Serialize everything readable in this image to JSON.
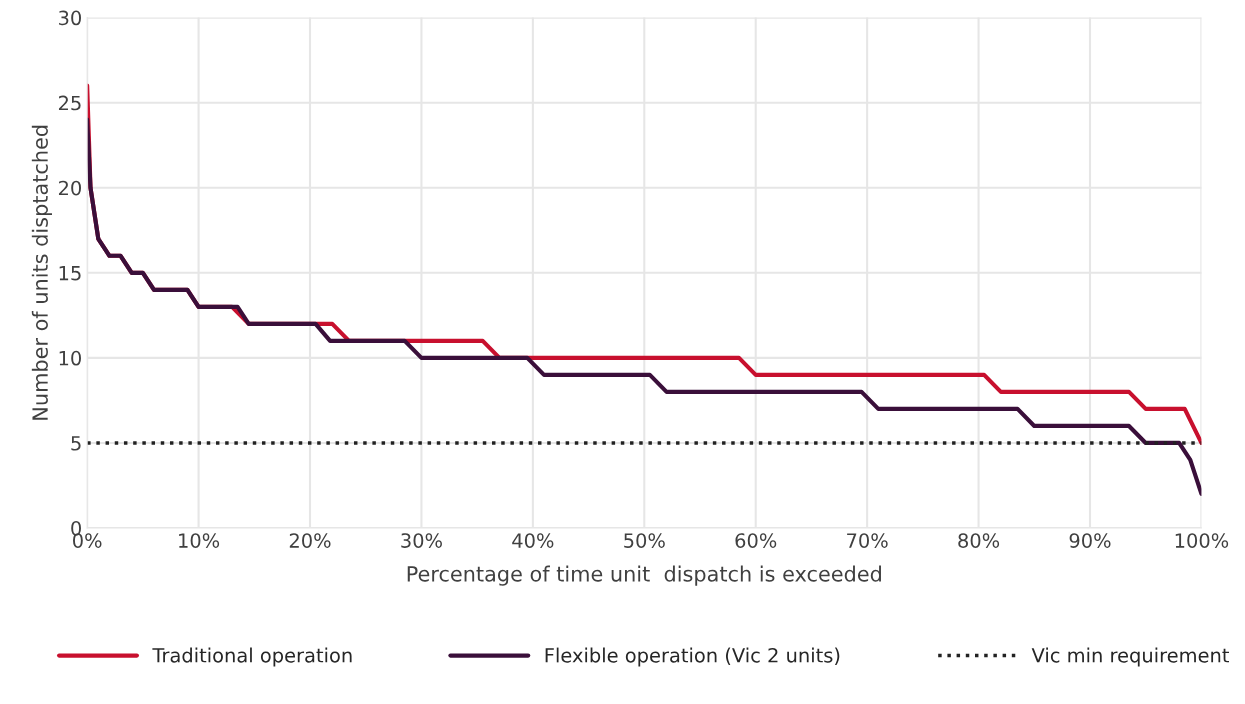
{
  "chart_data": {
    "type": "line",
    "xlabel": "Percentage of time unit  dispatch is exceeded",
    "ylabel": "Number of units disptatched",
    "xlim": [
      0,
      100
    ],
    "ylim": [
      0,
      30
    ],
    "xticks": [
      {
        "value": 0,
        "label": "0%"
      },
      {
        "value": 10,
        "label": "10%"
      },
      {
        "value": 20,
        "label": "20%"
      },
      {
        "value": 30,
        "label": "30%"
      },
      {
        "value": 40,
        "label": "40%"
      },
      {
        "value": 50,
        "label": "50%"
      },
      {
        "value": 60,
        "label": "60%"
      },
      {
        "value": 70,
        "label": "70%"
      },
      {
        "value": 80,
        "label": "80%"
      },
      {
        "value": 90,
        "label": "90%"
      },
      {
        "value": 100,
        "label": "100%"
      }
    ],
    "yticks": [
      0,
      5,
      10,
      15,
      20,
      25,
      30
    ],
    "grid": true,
    "legend": "bottom",
    "marker": "none",
    "line_style": "solid",
    "series": [
      {
        "name": "Traditional operation",
        "color": "#c8102e",
        "x": [
          0,
          0.3,
          1,
          2,
          3,
          4,
          5,
          6,
          9,
          10,
          13,
          14.5,
          22,
          23.5,
          35.5,
          37,
          58.5,
          60,
          80.5,
          82,
          93.5,
          95,
          98.5,
          100
        ],
        "values": [
          26,
          20,
          17,
          16,
          16,
          15,
          15,
          14,
          14,
          13,
          13,
          12,
          12,
          11,
          11,
          10,
          10,
          9,
          9,
          8,
          8,
          7,
          7,
          5
        ]
      },
      {
        "name": "Flexible operation (Vic 2 units)",
        "color": "#3a0f3a",
        "x": [
          0,
          0.3,
          1,
          2,
          3,
          4,
          5,
          6,
          9,
          10,
          13.5,
          14.5,
          20.5,
          21.8,
          28.5,
          30,
          39.5,
          41,
          50.5,
          52,
          69.5,
          71,
          83.5,
          85,
          93.5,
          95,
          98,
          99,
          100
        ],
        "values": [
          24,
          20,
          17,
          16,
          16,
          15,
          15,
          14,
          14,
          13,
          13,
          12,
          12,
          11,
          11,
          10,
          10,
          9,
          9,
          8,
          8,
          7,
          7,
          6,
          6,
          5,
          5,
          4,
          2
        ]
      }
    ],
    "ref_lines": [
      {
        "axis": "y",
        "value": 5,
        "label": "Vic min requirement",
        "color": "#222222",
        "line_style": "dotted"
      }
    ]
  }
}
